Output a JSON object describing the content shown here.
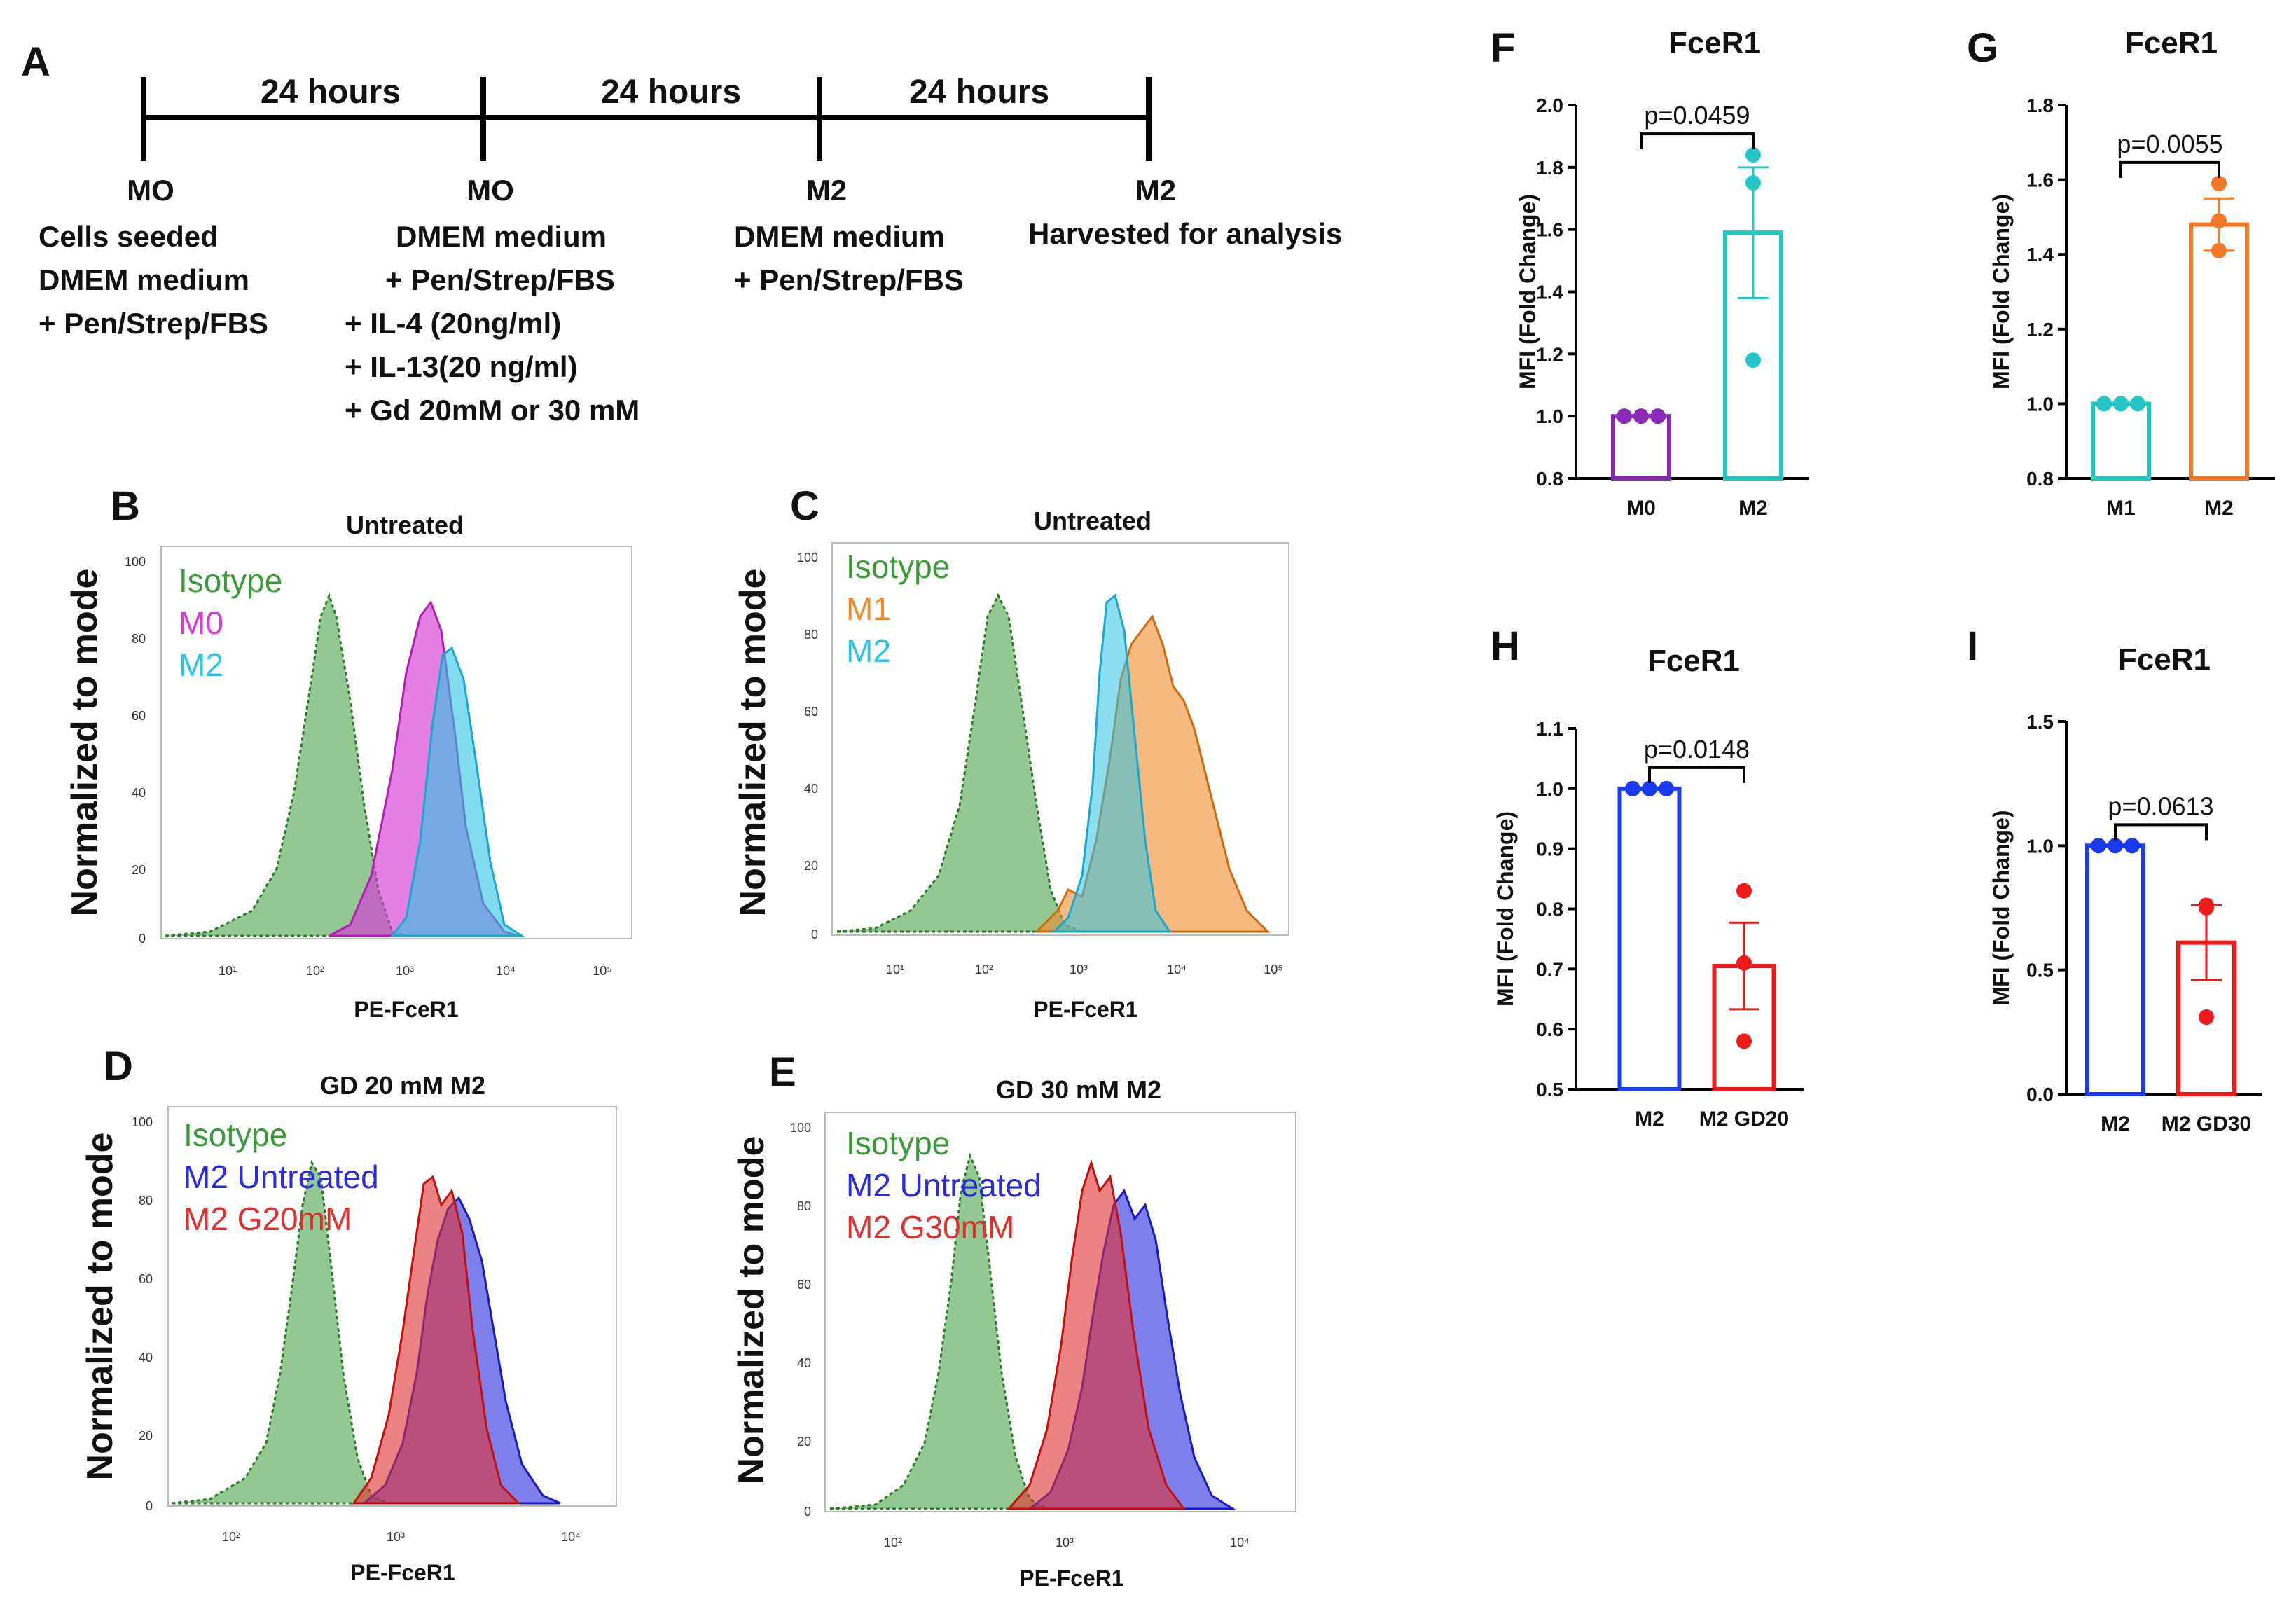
{
  "panel_a": {
    "letter": "A",
    "intervals": [
      "24 hours",
      "24 hours",
      "24 hours"
    ],
    "stages": [
      {
        "label": "MO",
        "lines": [
          "Cells seeded",
          "DMEM medium",
          "+ Pen/Strep/FBS"
        ]
      },
      {
        "label": "MO",
        "lines": [
          "DMEM medium",
          "+ Pen/Strep/FBS",
          "+ IL-4 (20ng/ml)",
          "+ IL-13(20 ng/ml)",
          "+ Gd 20mM or 30 mM"
        ]
      },
      {
        "label": "M2",
        "lines": [
          "DMEM medium",
          "+ Pen/Strep/FBS"
        ]
      },
      {
        "label": "M2",
        "lines": [
          "Harvested for analysis"
        ]
      }
    ]
  },
  "colors": {
    "isotype": "#3a9a3a",
    "m0": "#d63bd6",
    "m1": "#f08a2a",
    "m2": "#2ec4e6",
    "m2_untreated": "#2a2ae0",
    "m2_gd": "#e03030",
    "bar_purple": "#8a2bb8",
    "bar_teal": "#25c6c6",
    "bar_orange": "#f07a2a",
    "bar_blue": "#1a3af0",
    "bar_red": "#f01a1a"
  },
  "histograms": [
    {
      "letter": "B",
      "title": "Untreated",
      "xlabel": "PE-FceR1",
      "ylabel": "Normalized to mode",
      "xticks": [
        "10¹",
        "10²",
        "10³",
        "10⁴",
        "10⁵"
      ],
      "yticks": [
        "0",
        "20",
        "40",
        "60",
        "80",
        "100"
      ],
      "legend": [
        {
          "label": "Isotype",
          "color": "#3a9a3a"
        },
        {
          "label": "M0",
          "color": "#d63bd6"
        },
        {
          "label": "M2",
          "color": "#2ec4e6"
        }
      ]
    },
    {
      "letter": "C",
      "title": "Untreated",
      "xlabel": "PE-FceR1",
      "ylabel": "Normalized to mode",
      "xticks": [
        "10¹",
        "10²",
        "10³",
        "10⁴",
        "10⁵"
      ],
      "yticks": [
        "0",
        "20",
        "40",
        "60",
        "80",
        "100"
      ],
      "legend": [
        {
          "label": "Isotype",
          "color": "#3a9a3a"
        },
        {
          "label": "M1",
          "color": "#f08a2a"
        },
        {
          "label": "M2",
          "color": "#2ec4e6"
        }
      ]
    },
    {
      "letter": "D",
      "title": "GD 20 mM M2",
      "xlabel": "PE-FceR1",
      "ylabel": "Normalized to mode",
      "xticks": [
        "10²",
        "10³",
        "10⁴"
      ],
      "yticks": [
        "0",
        "20",
        "40",
        "60",
        "80",
        "100"
      ],
      "legend": [
        {
          "label": "Isotype",
          "color": "#3a9a3a"
        },
        {
          "label": "M2 Untreated",
          "color": "#2a2ae0"
        },
        {
          "label": "M2 G20mM",
          "color": "#e03030"
        }
      ]
    },
    {
      "letter": "E",
      "title": "GD 30 mM M2",
      "xlabel": "PE-FceR1",
      "ylabel": "Normalized to mode",
      "xticks": [
        "10²",
        "10³",
        "10⁴"
      ],
      "yticks": [
        "0",
        "20",
        "40",
        "60",
        "80",
        "100"
      ],
      "legend": [
        {
          "label": "Isotype",
          "color": "#3a9a3a"
        },
        {
          "label": "M2 Untreated",
          "color": "#2a2ae0"
        },
        {
          "label": "M2 G30mM",
          "color": "#e03030"
        }
      ]
    }
  ],
  "chart_data": [
    {
      "letter": "F",
      "type": "bar",
      "title": "FceR1",
      "ylabel": "MFI (Fold Change)",
      "categories": [
        "M0",
        "M2"
      ],
      "values": [
        1.0,
        1.59
      ],
      "errors": [
        0.0,
        0.21
      ],
      "points": [
        [
          1.0,
          1.0,
          1.0
        ],
        [
          1.84,
          1.75,
          1.18
        ]
      ],
      "ylim": [
        0.8,
        2.0
      ],
      "yticks": [
        "0.8",
        "1.0",
        "1.2",
        "1.4",
        "1.6",
        "1.8",
        "2.0"
      ],
      "pvalue": "p=0.0459"
    },
    {
      "letter": "G",
      "type": "bar",
      "title": "FceR1",
      "ylabel": "MFI (Fold Change)",
      "categories": [
        "M1",
        "M2"
      ],
      "values": [
        1.0,
        1.48
      ],
      "errors": [
        0.0,
        0.07
      ],
      "points": [
        [
          1.0,
          1.0,
          1.0
        ],
        [
          1.59,
          1.49,
          1.41
        ]
      ],
      "ylim": [
        0.8,
        1.8
      ],
      "yticks": [
        "0.8",
        "1.0",
        "1.2",
        "1.4",
        "1.6",
        "1.8"
      ],
      "pvalue": "p=0.0055"
    },
    {
      "letter": "H",
      "type": "bar",
      "title": "FceR1",
      "ylabel": "MFI (Fold Change)",
      "categories": [
        "M2",
        "M2 GD20"
      ],
      "values": [
        1.0,
        0.705
      ],
      "errors": [
        0.0,
        0.072
      ],
      "points": [
        [
          1.0,
          1.0,
          1.0
        ],
        [
          0.83,
          0.71,
          0.58
        ]
      ],
      "ylim": [
        0.5,
        1.1
      ],
      "yticks": [
        "0.5",
        "0.6",
        "0.7",
        "0.8",
        "0.9",
        "1.0",
        "1.1"
      ],
      "pvalue": "p=0.0148"
    },
    {
      "letter": "I",
      "type": "bar",
      "title": "FceR1",
      "ylabel": "MFI (Fold Change)",
      "categories": [
        "M2",
        "M2 GD30"
      ],
      "values": [
        1.0,
        0.61
      ],
      "errors": [
        0.0,
        0.15
      ],
      "points": [
        [
          1.0,
          1.0,
          1.0
        ],
        [
          0.76,
          0.75,
          0.31
        ]
      ],
      "ylim": [
        0.0,
        1.5
      ],
      "yticks": [
        "0.0",
        "0.5",
        "1.0",
        "1.5"
      ],
      "pvalue": "p=0.0613"
    }
  ]
}
